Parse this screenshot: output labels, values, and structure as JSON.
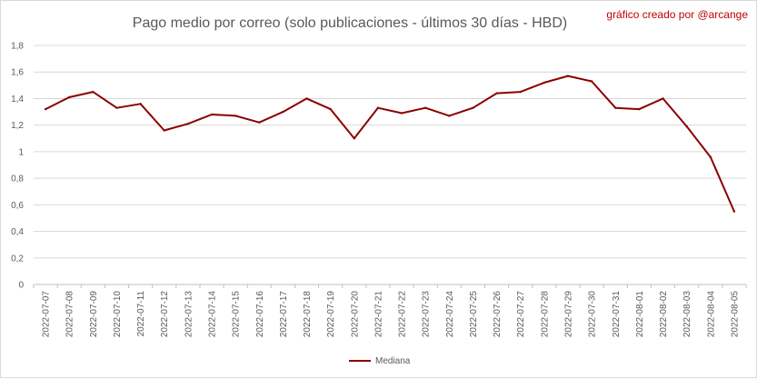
{
  "chart_data": {
    "type": "line",
    "title": "Pago medio por correo (solo publicaciones - últimos 30 días - HBD)",
    "annotation": "gráfico creado por @arcange",
    "xlabel": "",
    "ylabel": "",
    "ylim": [
      0,
      1.8
    ],
    "yticks": [
      "0",
      "0,2",
      "0,4",
      "0,6",
      "0,8",
      "1",
      "1,2",
      "1,4",
      "1,6",
      "1,8"
    ],
    "ytick_values": [
      0,
      0.2,
      0.4,
      0.6,
      0.8,
      1.0,
      1.2,
      1.4,
      1.6,
      1.8
    ],
    "grid": "horizontal",
    "legend": "bottom",
    "categories": [
      "2022-07-07",
      "2022-07-08",
      "2022-07-09",
      "2022-07-10",
      "2022-07-11",
      "2022-07-12",
      "2022-07-13",
      "2022-07-14",
      "2022-07-15",
      "2022-07-16",
      "2022-07-17",
      "2022-07-18",
      "2022-07-19",
      "2022-07-20",
      "2022-07-21",
      "2022-07-22",
      "2022-07-23",
      "2022-07-24",
      "2022-07-25",
      "2022-07-26",
      "2022-07-27",
      "2022-07-28",
      "2022-07-29",
      "2022-07-30",
      "2022-07-31",
      "2022-08-01",
      "2022-08-02",
      "2022-08-03",
      "2022-08-04",
      "2022-08-05"
    ],
    "series": [
      {
        "name": "Mediana",
        "color": "#8b0000",
        "values": [
          1.32,
          1.41,
          1.45,
          1.33,
          1.36,
          1.16,
          1.21,
          1.28,
          1.27,
          1.22,
          1.3,
          1.4,
          1.32,
          1.1,
          1.33,
          1.29,
          1.33,
          1.27,
          1.33,
          1.44,
          1.45,
          1.52,
          1.57,
          1.53,
          1.33,
          1.32,
          1.4,
          1.19,
          0.96,
          0.55
        ]
      }
    ]
  }
}
